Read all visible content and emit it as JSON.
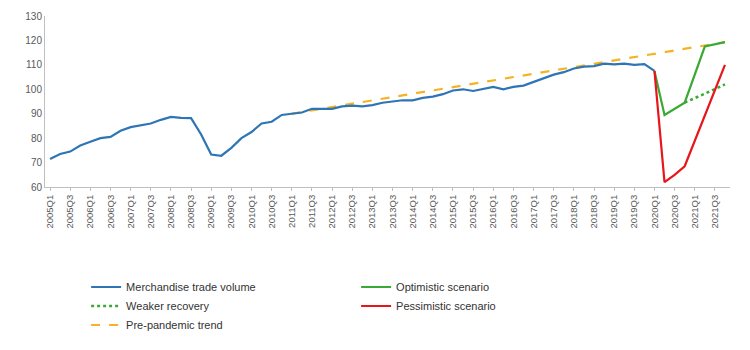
{
  "chart_data": {
    "type": "line",
    "categories": [
      "2005Q1",
      null,
      "2005Q3",
      null,
      "2006Q1",
      null,
      "2006Q3",
      null,
      "2007Q1",
      null,
      "2007Q3",
      null,
      "2008Q1",
      null,
      "2008Q3",
      null,
      "2009Q1",
      null,
      "2009Q3",
      null,
      "2010Q1",
      null,
      "2010Q3",
      null,
      "2011Q1",
      null,
      "2011Q3",
      null,
      "2012Q1",
      null,
      "2012Q3",
      null,
      "2013Q1",
      null,
      "2013Q3",
      null,
      "2014Q1",
      null,
      "2014Q3",
      null,
      "2015Q1",
      null,
      "2015Q3",
      null,
      "2016Q1",
      null,
      "2016Q3",
      null,
      "2017Q1",
      null,
      "2017Q3",
      null,
      "2018Q1",
      null,
      "2018Q3",
      null,
      "2019Q1",
      null,
      "2019Q3",
      null,
      "2020Q1",
      null,
      "2020Q3",
      null,
      "2021Q1",
      null,
      "2021Q3",
      null
    ],
    "series": [
      {
        "name": "Pre-pandemic trend",
        "color": "#f5b324",
        "line_style": "dash",
        "values": [
          null,
          null,
          null,
          null,
          null,
          null,
          null,
          null,
          null,
          null,
          null,
          null,
          null,
          null,
          null,
          null,
          null,
          null,
          null,
          null,
          null,
          null,
          null,
          null,
          90,
          null,
          null,
          null,
          null,
          null,
          null,
          null,
          null,
          null,
          null,
          null,
          null,
          null,
          null,
          null,
          null,
          null,
          null,
          null,
          null,
          null,
          null,
          null,
          null,
          null,
          null,
          null,
          null,
          null,
          null,
          null,
          null,
          null,
          null,
          null,
          null,
          null,
          null,
          null,
          null,
          null,
          null,
          119.3
        ]
      },
      {
        "name": "Merchandise trade volume",
        "color": "#2e75b6",
        "line_style": "solid",
        "values": [
          71.5,
          73.5,
          74.5,
          77,
          78.5,
          80,
          80.5,
          83,
          84.5,
          85.2,
          86,
          87.5,
          88.7,
          88.3,
          88.2,
          81.5,
          73.3,
          72.8,
          76,
          80,
          82.5,
          86,
          86.7,
          89.5,
          90,
          90.5,
          92,
          92,
          92,
          93,
          93.3,
          93,
          93.5,
          94.5,
          95,
          95.5,
          95.5,
          96.5,
          97,
          98,
          99.5,
          100,
          99.3,
          100,
          101,
          100,
          101,
          101.5,
          103,
          104.5,
          106,
          107,
          108.5,
          109.3,
          109.5,
          110.5,
          110.2,
          110.5,
          110,
          110.3,
          107.5,
          null,
          null,
          null,
          null,
          null,
          null,
          null
        ]
      },
      {
        "name": "Optimistic scenario",
        "color": "#3aaa35",
        "line_style": "solid",
        "values": [
          null,
          null,
          null,
          null,
          null,
          null,
          null,
          null,
          null,
          null,
          null,
          null,
          null,
          null,
          null,
          null,
          null,
          null,
          null,
          null,
          null,
          null,
          null,
          null,
          null,
          null,
          null,
          null,
          null,
          null,
          null,
          null,
          null,
          null,
          null,
          null,
          null,
          null,
          null,
          null,
          null,
          null,
          null,
          null,
          null,
          null,
          null,
          null,
          null,
          null,
          null,
          null,
          null,
          null,
          null,
          null,
          null,
          null,
          null,
          null,
          107.5,
          89.5,
          null,
          94.5,
          null,
          117.5,
          null,
          119.3
        ]
      },
      {
        "name": "Weaker recovery",
        "color": "#3aaa35",
        "line_style": "dot",
        "values": [
          null,
          null,
          null,
          null,
          null,
          null,
          null,
          null,
          null,
          null,
          null,
          null,
          null,
          null,
          null,
          null,
          null,
          null,
          null,
          null,
          null,
          null,
          null,
          null,
          null,
          null,
          null,
          null,
          null,
          null,
          null,
          null,
          null,
          null,
          null,
          null,
          null,
          null,
          null,
          null,
          null,
          null,
          null,
          null,
          null,
          null,
          null,
          null,
          null,
          null,
          null,
          null,
          null,
          null,
          null,
          null,
          null,
          null,
          null,
          null,
          null,
          null,
          null,
          94.5,
          null,
          null,
          null,
          102
        ]
      },
      {
        "name": "Pessimistic scenario",
        "color": "#e8161b",
        "line_style": "solid",
        "values": [
          null,
          null,
          null,
          null,
          null,
          null,
          null,
          null,
          null,
          null,
          null,
          null,
          null,
          null,
          null,
          null,
          null,
          null,
          null,
          null,
          null,
          null,
          null,
          null,
          null,
          null,
          null,
          null,
          null,
          null,
          null,
          null,
          null,
          null,
          null,
          null,
          null,
          null,
          null,
          null,
          null,
          null,
          null,
          null,
          null,
          null,
          null,
          null,
          null,
          null,
          null,
          null,
          null,
          null,
          null,
          null,
          null,
          null,
          null,
          null,
          107.5,
          62,
          65,
          68.5,
          null,
          null,
          null,
          110
        ]
      }
    ],
    "legend_order": [
      "Merchandise trade volume",
      "Optimistic scenario",
      "Weaker recovery",
      "Pessimistic scenario",
      "Pre-pandemic trend"
    ],
    "ylim": [
      60,
      130
    ],
    "yticks": [
      60,
      70,
      80,
      90,
      100,
      110,
      120,
      130
    ],
    "grid": false,
    "legend": "bottom"
  }
}
